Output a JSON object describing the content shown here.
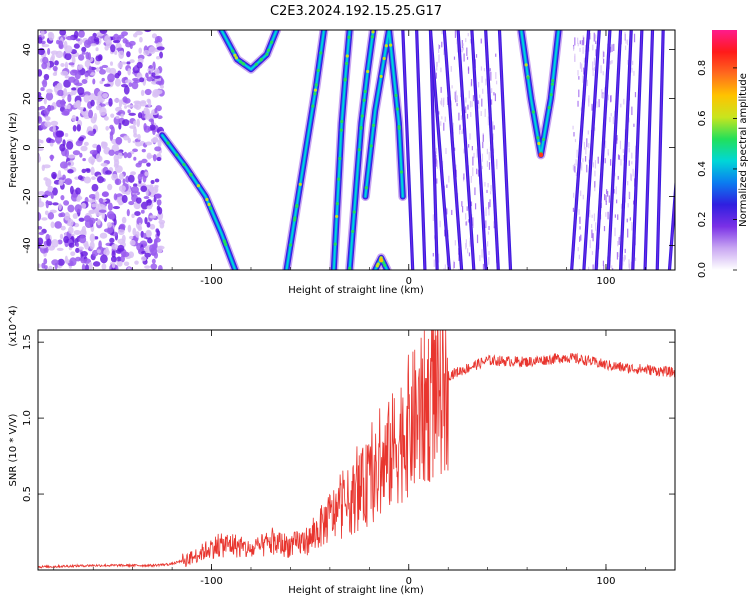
{
  "figure": {
    "title": "C2E3.2024.192.15.25.G17"
  },
  "chart_data": [
    {
      "type": "heatmap",
      "title": "C2E3.2024.192.15.25.G17",
      "xlabel": "Height of straight line (km)",
      "ylabel": "Frequency (Hz)",
      "xlim": [
        -188,
        135
      ],
      "ylim": [
        -50,
        48
      ],
      "xticks": [
        -100,
        0,
        100
      ],
      "xtick_labels": [
        "-100",
        "0",
        "100"
      ],
      "yticks": [
        -40,
        -20,
        0,
        20,
        40
      ],
      "ytick_labels": [
        "-40",
        "-20",
        "0",
        "20",
        "40"
      ],
      "colorbar": {
        "label": "Normalized spectral amplitude",
        "range": [
          0,
          0.95
        ],
        "ticks": [
          0,
          0.2,
          0.4,
          0.6,
          0.8
        ],
        "tick_labels": [
          "0.0",
          "0.2",
          "0.4",
          "0.6",
          "0.8"
        ],
        "colors": [
          "#ffffff",
          "#c9a7f2",
          "#7a30e6",
          "#2f1fe0",
          "#0b7cf0",
          "#00d7d7",
          "#22e05a",
          "#c8e51e",
          "#ffc300",
          "#ff6a1e",
          "#ff1a1a",
          "#ff1b8c"
        ]
      },
      "features": {
        "noise_region_x": [
          -188,
          -125
        ],
        "arcs": [
          {
            "x": [
              -125,
              -113,
              -103,
              -95,
              -88
            ],
            "y": [
              5,
              -8,
              -20,
              -35,
              -50
            ]
          },
          {
            "x": [
              -95,
              -87,
              -80,
              -72,
              -67
            ],
            "y": [
              48,
              36,
              32,
              38,
              48
            ]
          },
          {
            "x": [
              -62,
              -57,
              -52,
              -47,
              -43
            ],
            "y": [
              -50,
              -25,
              0,
              25,
              48
            ]
          },
          {
            "x": [
              -38,
              -36,
              -34,
              -32,
              -30
            ],
            "y": [
              -50,
              -20,
              10,
              30,
              48
            ]
          },
          {
            "x": [
              -30,
              -27,
              -24,
              -21,
              -18
            ],
            "y": [
              -50,
              -20,
              10,
              30,
              48
            ]
          },
          {
            "x": [
              -22,
              -17,
              -10,
              -5,
              -3
            ],
            "y": [
              -20,
              15,
              48,
              10,
              -20
            ]
          },
          {
            "x": [
              -17,
              -14,
              -11
            ],
            "y": [
              -50,
              -45,
              -50
            ]
          },
          {
            "x": [
              57,
              62,
              67,
              72,
              76
            ],
            "y": [
              48,
              20,
              -3,
              20,
              48
            ]
          }
        ],
        "stripes_region_x": [
          2,
          135
        ],
        "vertical_noise_x": [
          12,
          45
        ],
        "vertical_noise_x2": [
          83,
          115
        ]
      }
    },
    {
      "type": "line",
      "xlabel": "Height of straight line (km)",
      "ylabel": "SNR (10 * V/V)",
      "y_scale_note": "(x10^4)",
      "xlim": [
        -188,
        135
      ],
      "ylim": [
        0,
        1.58
      ],
      "xticks": [
        -100,
        0,
        100
      ],
      "xtick_labels": [
        "-100",
        "0",
        "100"
      ],
      "yticks": [
        0.5,
        1.0,
        1.5
      ],
      "ytick_labels": [
        "0.5",
        "1.0",
        "1.5"
      ],
      "color": "#e8352e",
      "series": [
        {
          "x": [
            -188,
            -160,
            -130,
            -120,
            -110,
            -100,
            -90,
            -80,
            -70,
            -60,
            -50,
            -40,
            -30,
            -20,
            -15,
            -10,
            -5,
            0,
            5,
            10,
            15,
            20,
            30,
            40,
            60,
            80,
            90,
            100,
            110,
            120,
            135
          ],
          "y": [
            0.02,
            0.03,
            0.03,
            0.04,
            0.08,
            0.15,
            0.17,
            0.13,
            0.18,
            0.16,
            0.2,
            0.35,
            0.45,
            0.58,
            0.62,
            0.75,
            0.85,
            0.95,
            1.0,
            1.1,
            1.2,
            1.28,
            1.33,
            1.38,
            1.37,
            1.4,
            1.38,
            1.35,
            1.33,
            1.32,
            1.3
          ]
        }
      ]
    }
  ]
}
